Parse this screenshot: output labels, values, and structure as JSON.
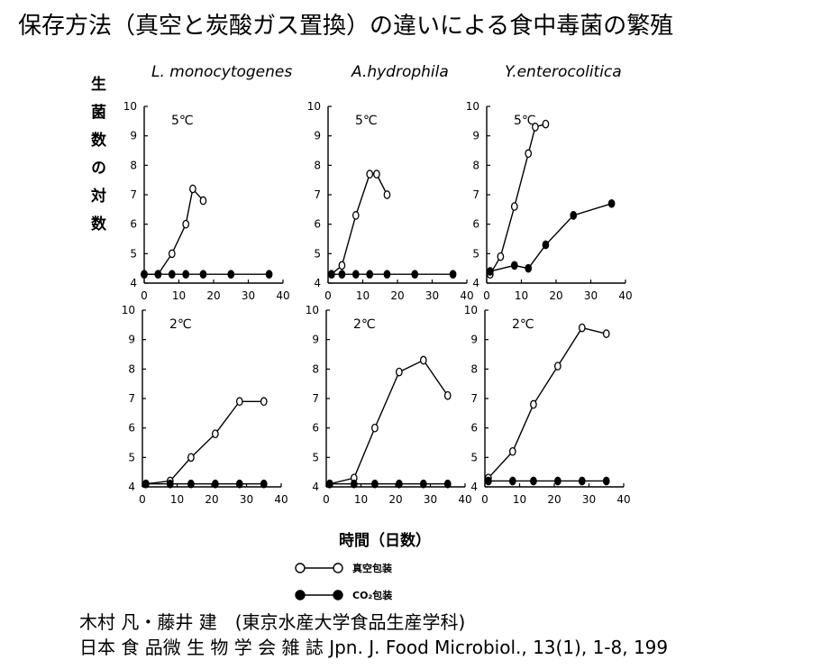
{
  "title": "保存方法（真空と炭酸ガス置換）の違いによる食中毒菌の繁殖",
  "organisms": [
    "L. monocytogenes",
    "A.hydrophila",
    "Y.enterocolitica"
  ],
  "ylabel": "生菌数の対数",
  "xlabel": "時間（日数）",
  "legend": [
    {
      "label": "真空包装",
      "style": "open"
    },
    {
      "label": "CO₂包装",
      "style": "filled"
    }
  ],
  "reference": {
    "line1": "木村 凡・藤井 建　(東京水産大学食品生産学科)",
    "line2": "日本 食 品微 生 物 学 会 雑 誌 Jpn. J. Food Microbiol., 13(1), 1-8, 199"
  },
  "chart_data": [
    {
      "type": "line",
      "organism": "L. monocytogenes",
      "temperature": "5℃",
      "xlim": [
        0,
        40
      ],
      "ylim": [
        4,
        10
      ],
      "xticks": [
        0,
        10,
        20,
        30,
        40
      ],
      "yticks": [
        4,
        5,
        6,
        7,
        8,
        9,
        10
      ],
      "series": [
        {
          "name": "真空包装",
          "marker": "open",
          "points": [
            [
              0,
              4.3
            ],
            [
              4,
              4.3
            ],
            [
              8,
              5.0
            ],
            [
              12,
              6.0
            ],
            [
              14,
              7.2
            ],
            [
              17,
              6.8
            ]
          ]
        },
        {
          "name": "CO₂包装",
          "marker": "filled",
          "points": [
            [
              0,
              4.3
            ],
            [
              4,
              4.3
            ],
            [
              8,
              4.3
            ],
            [
              12,
              4.3
            ],
            [
              17,
              4.3
            ],
            [
              25,
              4.3
            ],
            [
              36,
              4.3
            ]
          ]
        }
      ]
    },
    {
      "type": "line",
      "organism": "A.hydrophila",
      "temperature": "5℃",
      "xlim": [
        0,
        40
      ],
      "ylim": [
        4,
        10
      ],
      "xticks": [
        0,
        10,
        20,
        30,
        40
      ],
      "yticks": [
        4,
        5,
        6,
        7,
        8,
        9,
        10
      ],
      "series": [
        {
          "name": "真空包装",
          "marker": "open",
          "points": [
            [
              1,
              4.3
            ],
            [
              4,
              4.6
            ],
            [
              8,
              6.3
            ],
            [
              12,
              7.7
            ],
            [
              14,
              7.7
            ],
            [
              17,
              7.0
            ]
          ]
        },
        {
          "name": "CO₂包装",
          "marker": "filled",
          "points": [
            [
              1,
              4.3
            ],
            [
              4,
              4.3
            ],
            [
              8,
              4.3
            ],
            [
              12,
              4.3
            ],
            [
              17,
              4.3
            ],
            [
              25,
              4.3
            ],
            [
              36,
              4.3
            ]
          ]
        }
      ]
    },
    {
      "type": "line",
      "organism": "Y.enterocolitica",
      "temperature": "5℃",
      "xlim": [
        0,
        40
      ],
      "ylim": [
        4,
        10
      ],
      "xticks": [
        0,
        10,
        20,
        30,
        40
      ],
      "yticks": [
        4,
        5,
        6,
        7,
        8,
        9,
        10
      ],
      "series": [
        {
          "name": "真空包装",
          "marker": "open",
          "points": [
            [
              1,
              4.3
            ],
            [
              4,
              4.9
            ],
            [
              8,
              6.6
            ],
            [
              12,
              8.4
            ],
            [
              14,
              9.3
            ],
            [
              17,
              9.4
            ]
          ]
        },
        {
          "name": "CO₂包装",
          "marker": "filled",
          "points": [
            [
              1,
              4.4
            ],
            [
              8,
              4.6
            ],
            [
              12,
              4.5
            ],
            [
              17,
              5.3
            ],
            [
              25,
              6.3
            ],
            [
              36,
              6.7
            ]
          ]
        }
      ]
    },
    {
      "type": "line",
      "organism": "L. monocytogenes",
      "temperature": "2℃",
      "xlim": [
        0,
        40
      ],
      "ylim": [
        4,
        10
      ],
      "xticks": [
        0,
        10,
        20,
        30,
        40
      ],
      "yticks": [
        4,
        5,
        6,
        7,
        8,
        9,
        10
      ],
      "series": [
        {
          "name": "真空包装",
          "marker": "open",
          "points": [
            [
              1,
              4.1
            ],
            [
              8,
              4.2
            ],
            [
              14,
              5.0
            ],
            [
              21,
              5.8
            ],
            [
              28,
              6.9
            ],
            [
              35,
              6.9
            ]
          ]
        },
        {
          "name": "CO₂包装",
          "marker": "filled",
          "points": [
            [
              1,
              4.1
            ],
            [
              8,
              4.1
            ],
            [
              14,
              4.1
            ],
            [
              21,
              4.1
            ],
            [
              28,
              4.1
            ],
            [
              35,
              4.1
            ]
          ]
        }
      ]
    },
    {
      "type": "line",
      "organism": "A.hydrophila",
      "temperature": "2℃",
      "xlim": [
        0,
        40
      ],
      "ylim": [
        4,
        10
      ],
      "xticks": [
        0,
        10,
        20,
        30,
        40
      ],
      "yticks": [
        4,
        5,
        6,
        7,
        8,
        9,
        10
      ],
      "series": [
        {
          "name": "真空包装",
          "marker": "open",
          "points": [
            [
              1,
              4.1
            ],
            [
              8,
              4.3
            ],
            [
              14,
              6.0
            ],
            [
              21,
              7.9
            ],
            [
              28,
              8.3
            ],
            [
              35,
              7.1
            ]
          ]
        },
        {
          "name": "CO₂包装",
          "marker": "filled",
          "points": [
            [
              1,
              4.1
            ],
            [
              8,
              4.1
            ],
            [
              14,
              4.1
            ],
            [
              21,
              4.1
            ],
            [
              28,
              4.1
            ],
            [
              35,
              4.1
            ]
          ]
        }
      ]
    },
    {
      "type": "line",
      "organism": "Y.enterocolitica",
      "temperature": "2℃",
      "xlim": [
        0,
        40
      ],
      "ylim": [
        4,
        10
      ],
      "xticks": [
        0,
        10,
        20,
        30,
        40
      ],
      "yticks": [
        4,
        5,
        6,
        7,
        8,
        9,
        10
      ],
      "series": [
        {
          "name": "真空包装",
          "marker": "open",
          "points": [
            [
              1,
              4.3
            ],
            [
              8,
              5.2
            ],
            [
              14,
              6.8
            ],
            [
              21,
              8.1
            ],
            [
              28,
              9.4
            ],
            [
              35,
              9.2
            ]
          ]
        },
        {
          "name": "CO₂包装",
          "marker": "filled",
          "points": [
            [
              1,
              4.2
            ],
            [
              8,
              4.2
            ],
            [
              14,
              4.2
            ],
            [
              21,
              4.2
            ],
            [
              28,
              4.2
            ],
            [
              35,
              4.2
            ]
          ]
        }
      ]
    }
  ]
}
